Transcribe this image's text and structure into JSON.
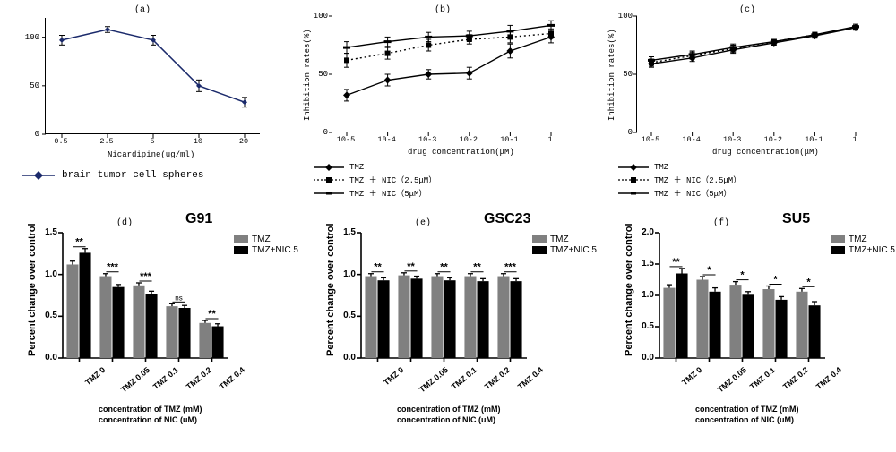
{
  "colors": {
    "bg": "#ffffff",
    "fg": "#000000",
    "navy": "#1b2a6b",
    "gray": "#808080",
    "black": "#000000",
    "bar_gray": "#808080",
    "bar_black": "#000000"
  },
  "panel_a": {
    "type": "line",
    "tag": "(a)",
    "x_label": "Nicardipine(ug/ml)",
    "legend_label": "brain tumor cell spheres",
    "x_ticks": [
      "0.5",
      "2.5",
      "5",
      "10",
      "20"
    ],
    "y_ticks": [
      0,
      50,
      100
    ],
    "ylim": [
      0,
      120
    ],
    "marker_color": "#1b2a6b",
    "line_color": "#1b2a6b",
    "marker": "diamond",
    "marker_size": 6,
    "line_width": 1.5,
    "values": [
      97,
      108,
      97,
      50,
      33
    ],
    "errors": [
      5,
      3,
      5,
      6,
      5
    ]
  },
  "panel_b": {
    "type": "line",
    "tag": "(b)",
    "x_label": "drug concentration(μM)",
    "y_label": "Inhibition rates(%)",
    "x_ticks": [
      "10-5",
      "10-4",
      "10-3",
      "10-2",
      "10-1",
      "1"
    ],
    "y_ticks": [
      0,
      50,
      100
    ],
    "ylim": [
      0,
      100
    ],
    "series": [
      {
        "name": "TMZ",
        "marker": "diamond",
        "color": "#000000",
        "dash": "none",
        "values": [
          32,
          45,
          50,
          51,
          70,
          82
        ],
        "errors": [
          5,
          5,
          4,
          5,
          6,
          5
        ]
      },
      {
        "name": "TMZ ＋ NIC（2.5μM）",
        "marker": "square",
        "color": "#000000",
        "dash": "dotted",
        "values": [
          62,
          68,
          75,
          80,
          82,
          85
        ],
        "errors": [
          6,
          5,
          5,
          4,
          5,
          4
        ]
      },
      {
        "name": "TMZ ＋ NIC（5μM）",
        "marker": "dash",
        "color": "#000000",
        "dash": "none",
        "values": [
          73,
          78,
          82,
          83,
          87,
          92
        ],
        "errors": [
          5,
          4,
          4,
          4,
          5,
          4
        ]
      }
    ]
  },
  "panel_c": {
    "type": "line",
    "tag": "(c)",
    "x_label": "drug concentration(μM)",
    "y_label": "Inhibition rates(%)",
    "x_ticks": [
      "10-5",
      "10-4",
      "10-3",
      "10-2",
      "10-1",
      "1"
    ],
    "y_ticks": [
      0,
      50,
      100
    ],
    "ylim": [
      0,
      100
    ],
    "series": [
      {
        "name": "TMZ",
        "marker": "diamond",
        "color": "#000000",
        "dash": "none",
        "values": [
          59,
          64,
          71,
          77,
          83,
          90
        ],
        "errors": [
          3,
          3,
          3,
          2,
          2,
          2
        ]
      },
      {
        "name": "TMZ ＋ NIC（2.5μM）",
        "marker": "square",
        "color": "#000000",
        "dash": "dotted",
        "values": [
          60,
          66,
          72,
          78,
          84,
          90
        ],
        "errors": [
          3,
          3,
          3,
          2,
          2,
          2
        ]
      },
      {
        "name": "TMZ ＋ NIC（5μM）",
        "marker": "dash",
        "color": "#000000",
        "dash": "none",
        "values": [
          62,
          67,
          73,
          78,
          84,
          91
        ],
        "errors": [
          3,
          3,
          3,
          2,
          2,
          2
        ]
      }
    ]
  },
  "bar_common": {
    "y_label": "Percent change over control",
    "x_labels": [
      "TMZ 0",
      "TMZ 0.05",
      "TMZ 0.1",
      "TMZ 0.2",
      "TMZ 0.4"
    ],
    "x_axis_sub1": "concentration of TMZ (mM)",
    "x_axis_sub2": "concentration of NIC (uM)",
    "legend": [
      "TMZ",
      "TMZ+NIC 5"
    ],
    "legend_colors": [
      "#808080",
      "#000000"
    ],
    "bar_width": 0.38,
    "error_cap": 3
  },
  "panel_d": {
    "type": "bar",
    "tag": "(d)",
    "title": "G91",
    "ylim": [
      0.0,
      1.5
    ],
    "ytick_step": 0.5,
    "series": [
      {
        "color": "#808080",
        "values": [
          1.12,
          0.98,
          0.87,
          0.62,
          0.42
        ],
        "errors": [
          0.04,
          0.03,
          0.03,
          0.03,
          0.03
        ]
      },
      {
        "color": "#000000",
        "values": [
          1.26,
          0.85,
          0.77,
          0.6,
          0.38
        ],
        "errors": [
          0.05,
          0.03,
          0.03,
          0.03,
          0.03
        ]
      }
    ],
    "sig": [
      "**",
      "***",
      "***",
      "ns",
      "**"
    ]
  },
  "panel_e": {
    "type": "bar",
    "tag": "(e)",
    "title": "GSC23",
    "ylim": [
      0.0,
      1.5
    ],
    "ytick_step": 0.5,
    "series": [
      {
        "color": "#808080",
        "values": [
          0.98,
          0.99,
          0.98,
          0.98,
          0.98
        ],
        "errors": [
          0.03,
          0.03,
          0.03,
          0.03,
          0.03
        ]
      },
      {
        "color": "#000000",
        "values": [
          0.93,
          0.95,
          0.93,
          0.92,
          0.92
        ],
        "errors": [
          0.03,
          0.03,
          0.03,
          0.03,
          0.03
        ]
      }
    ],
    "sig": [
      "**",
      "**",
      "**",
      "**",
      "***"
    ]
  },
  "panel_f": {
    "type": "bar",
    "tag": "(f)",
    "title": "SU5",
    "ylim": [
      0.0,
      2.0
    ],
    "ytick_step": 0.5,
    "series": [
      {
        "color": "#808080",
        "values": [
          1.12,
          1.25,
          1.17,
          1.1,
          1.06
        ],
        "errors": [
          0.05,
          0.05,
          0.05,
          0.05,
          0.05
        ]
      },
      {
        "color": "#000000",
        "values": [
          1.35,
          1.06,
          1.01,
          0.93,
          0.84
        ],
        "errors": [
          0.08,
          0.06,
          0.05,
          0.05,
          0.06
        ]
      }
    ],
    "sig": [
      "**",
      "*",
      "*",
      "*",
      "*"
    ]
  }
}
